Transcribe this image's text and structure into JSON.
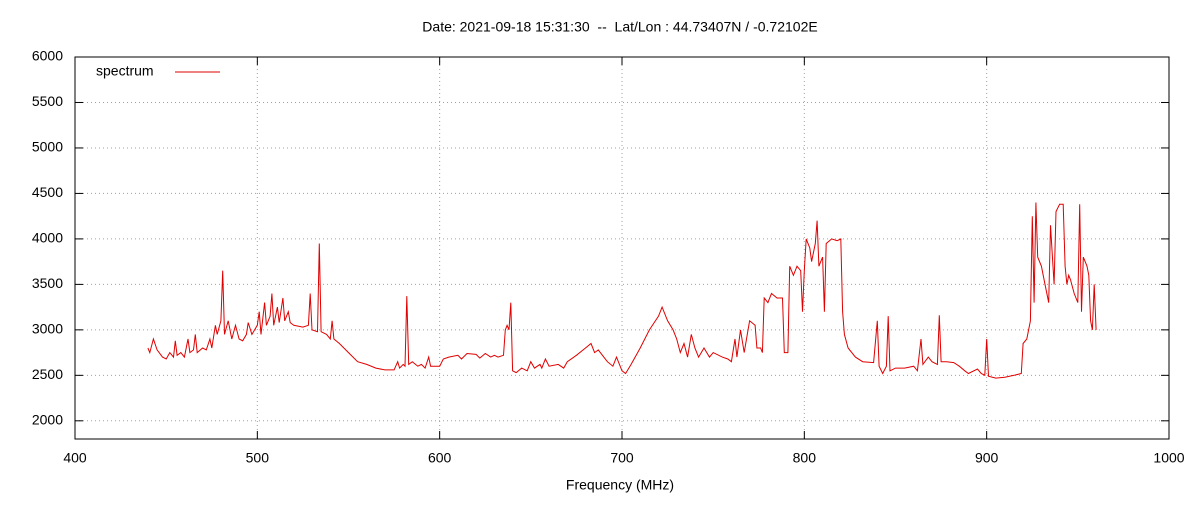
{
  "chart_data": {
    "type": "line",
    "title": "Date: 2021-09-18 15:31:30  --  Lat/Lon : 44.73407N / -0.72102E",
    "x_label": "Frequency (MHz)",
    "xlim": [
      400,
      1000
    ],
    "xticks": [
      400,
      500,
      600,
      700,
      800,
      900,
      1000
    ],
    "ylim": [
      1800,
      6000
    ],
    "yticks": [
      2000,
      2500,
      3000,
      3500,
      4000,
      4500,
      5000,
      5500,
      6000
    ],
    "grid": true,
    "legend": "top-left",
    "x": [
      440,
      441,
      443,
      445,
      448,
      450,
      452,
      454,
      455,
      456,
      458,
      460,
      462,
      463,
      465,
      466,
      467,
      470,
      472,
      474,
      475,
      477,
      478,
      480,
      481,
      482,
      484,
      486,
      488,
      490,
      492,
      494,
      495,
      497,
      500,
      501,
      502,
      504,
      505,
      507,
      508,
      509,
      511,
      512,
      514,
      515,
      517,
      518,
      520,
      525,
      528,
      529,
      530,
      533,
      534,
      535,
      538,
      540,
      541,
      542,
      545,
      550,
      555,
      560,
      565,
      570,
      575,
      577,
      578,
      580,
      581,
      582,
      583,
      585,
      588,
      590,
      592,
      594,
      595,
      600,
      602,
      605,
      610,
      612,
      615,
      620,
      622,
      625,
      628,
      630,
      632,
      635,
      636,
      637,
      638,
      639,
      640,
      642,
      645,
      648,
      650,
      652,
      655,
      656,
      658,
      660,
      665,
      668,
      670,
      675,
      680,
      683,
      685,
      687,
      690,
      692,
      695,
      697,
      700,
      702,
      705,
      710,
      715,
      720,
      722,
      725,
      728,
      730,
      732,
      734,
      736,
      738,
      740,
      742,
      745,
      748,
      750,
      755,
      758,
      760,
      762,
      763,
      765,
      767,
      770,
      773,
      774,
      776,
      777,
      778,
      780,
      782,
      785,
      788,
      789,
      791,
      792,
      794,
      796,
      798,
      799,
      800,
      801,
      803,
      804,
      806,
      807,
      808,
      810,
      811,
      812,
      815,
      818,
      820,
      821,
      822,
      824,
      828,
      832,
      838,
      840,
      841,
      843,
      845,
      846,
      847,
      850,
      855,
      860,
      862,
      864,
      865,
      868,
      870,
      873,
      874,
      875,
      878,
      882,
      885,
      888,
      890,
      895,
      897,
      899,
      900,
      901,
      905,
      910,
      915,
      919,
      920,
      922,
      924,
      925,
      926,
      927,
      928,
      930,
      932,
      934,
      935,
      937,
      938,
      940,
      942,
      943,
      944,
      945,
      946,
      948,
      950,
      951,
      952,
      953,
      955,
      956,
      957,
      958,
      959,
      960
    ],
    "series": [
      {
        "name": "spectrum",
        "color": "#e00000",
        "values": [
          2800,
          2750,
          2900,
          2780,
          2700,
          2680,
          2750,
          2700,
          2880,
          2720,
          2750,
          2700,
          2900,
          2750,
          2780,
          2950,
          2750,
          2800,
          2780,
          2900,
          2800,
          3050,
          2950,
          3100,
          3650,
          2950,
          3100,
          2900,
          3050,
          2900,
          2880,
          2950,
          3080,
          2950,
          3050,
          3200,
          2950,
          3300,
          3050,
          3150,
          3400,
          3050,
          3250,
          3080,
          3350,
          3100,
          3200,
          3080,
          3050,
          3030,
          3050,
          3400,
          3000,
          2980,
          3950,
          2980,
          2950,
          2900,
          3100,
          2900,
          2850,
          2750,
          2650,
          2620,
          2580,
          2560,
          2560,
          2650,
          2580,
          2620,
          2600,
          3370,
          2620,
          2650,
          2600,
          2620,
          2580,
          2700,
          2600,
          2600,
          2680,
          2700,
          2720,
          2680,
          2740,
          2730,
          2690,
          2740,
          2700,
          2720,
          2700,
          2720,
          3000,
          3050,
          3000,
          3300,
          2550,
          2530,
          2580,
          2550,
          2650,
          2580,
          2620,
          2580,
          2680,
          2600,
          2620,
          2580,
          2650,
          2720,
          2800,
          2850,
          2750,
          2780,
          2700,
          2650,
          2600,
          2700,
          2550,
          2520,
          2620,
          2800,
          3000,
          3150,
          3250,
          3100,
          3000,
          2900,
          2750,
          2850,
          2700,
          2950,
          2800,
          2700,
          2800,
          2700,
          2750,
          2700,
          2680,
          2650,
          2900,
          2700,
          3000,
          2750,
          3100,
          3050,
          2800,
          2800,
          2750,
          3350,
          3300,
          3400,
          3350,
          3350,
          2750,
          2750,
          3700,
          3600,
          3700,
          3650,
          3200,
          3650,
          4000,
          3900,
          3750,
          3950,
          4200,
          3700,
          3800,
          3200,
          3950,
          4000,
          3980,
          4000,
          3200,
          2950,
          2800,
          2700,
          2650,
          2640,
          3100,
          2600,
          2520,
          2600,
          3150,
          2550,
          2580,
          2580,
          2600,
          2550,
          2900,
          2620,
          2700,
          2650,
          2620,
          3160,
          2650,
          2650,
          2640,
          2600,
          2550,
          2520,
          2570,
          2520,
          2500,
          2900,
          2490,
          2470,
          2480,
          2500,
          2520,
          2850,
          2900,
          3100,
          4250,
          3300,
          4400,
          3800,
          3700,
          3500,
          3300,
          4150,
          3500,
          4300,
          4380,
          4380,
          3700,
          3500,
          3600,
          3550,
          3400,
          3300,
          4380,
          3200,
          3800,
          3700,
          3600,
          3100,
          3000,
          3500,
          3000
        ]
      }
    ]
  }
}
